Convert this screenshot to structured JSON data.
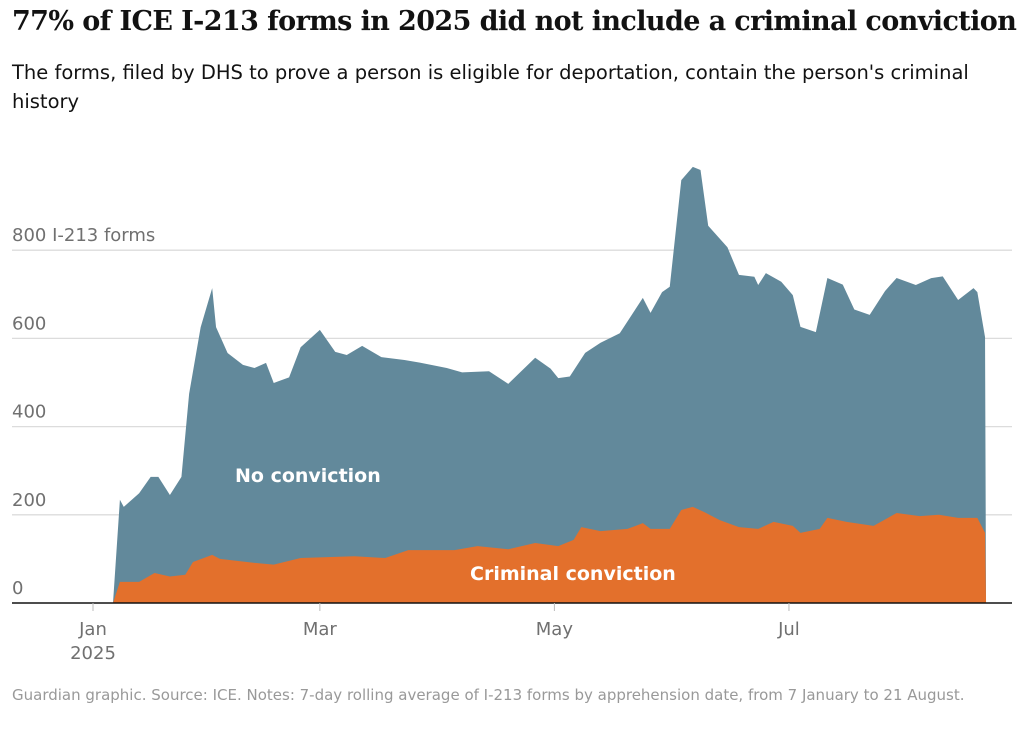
{
  "header": {
    "title": "77% of ICE I-213 forms in 2025 did not include a criminal conviction",
    "subtitle": "The forms, filed by DHS to prove a person is eligible for deportation, contain the person's criminal history"
  },
  "footer": "Guardian graphic. Source: ICE. Notes: 7-day rolling average of I-213 forms by apprehension date, from 7 January to 21 August.",
  "chart_data": {
    "type": "area",
    "stacked": true,
    "year": 2025,
    "ylim": [
      0,
      1000
    ],
    "yticks": [
      0,
      200,
      400,
      600,
      800
    ],
    "ytick_labels": [
      "0",
      "200",
      "400",
      "600",
      "800 I-213 forms"
    ],
    "xticks": [
      {
        "date": "01-01",
        "label": "Jan",
        "sublabel": "2025"
      },
      {
        "date": "03-01",
        "label": "Mar"
      },
      {
        "date": "05-01",
        "label": "May"
      },
      {
        "date": "07-01",
        "label": "Jul"
      }
    ],
    "grid": true,
    "colors": {
      "criminal": "#e3702c",
      "no_conviction": "#62899b"
    },
    "series": [
      {
        "name": "Criminal conviction",
        "dates": [
          "01-08",
          "01-13",
          "01-17",
          "01-21",
          "01-25",
          "01-27",
          "02-01",
          "02-03",
          "02-12",
          "02-17",
          "02-24",
          "03-10",
          "03-18",
          "03-24",
          "04-05",
          "04-11",
          "04-19",
          "04-26",
          "05-02",
          "05-06",
          "05-08",
          "05-13",
          "05-20",
          "05-24",
          "05-26",
          "05-31",
          "06-03",
          "06-06",
          "06-09",
          "06-13",
          "06-18",
          "06-23",
          "06-27",
          "07-02",
          "07-04",
          "07-09",
          "07-11",
          "07-16",
          "07-23",
          "07-29",
          "08-04",
          "08-09",
          "08-14",
          "08-19",
          "08-21"
        ],
        "values": [
          48,
          48,
          68,
          60,
          64,
          93,
          109,
          100,
          91,
          87,
          102,
          106,
          102,
          120,
          120,
          129,
          122,
          136,
          129,
          143,
          172,
          163,
          168,
          181,
          168,
          168,
          211,
          218,
          206,
          188,
          172,
          168,
          184,
          175,
          159,
          168,
          193,
          184,
          175,
          204,
          197,
          200,
          193,
          193,
          159
        ]
      },
      {
        "name": "No conviction",
        "dates": [
          "01-08",
          "01-09",
          "01-13",
          "01-16",
          "01-18",
          "01-21",
          "01-24",
          "01-26",
          "01-29",
          "02-01",
          "02-02",
          "02-05",
          "02-09",
          "02-12",
          "02-15",
          "02-17",
          "02-21",
          "02-24",
          "03-01",
          "03-05",
          "03-08",
          "03-12",
          "03-17",
          "03-23",
          "03-27",
          "04-03",
          "04-07",
          "04-14",
          "04-19",
          "04-26",
          "04-30",
          "05-02",
          "05-05",
          "05-09",
          "05-13",
          "05-18",
          "05-24",
          "05-26",
          "05-29",
          "05-31",
          "06-03",
          "06-06",
          "06-08",
          "06-10",
          "06-15",
          "06-18",
          "06-22",
          "06-23",
          "06-25",
          "06-29",
          "07-02",
          "07-04",
          "07-08",
          "07-11",
          "07-15",
          "07-18",
          "07-22",
          "07-26",
          "07-29",
          "08-03",
          "08-07",
          "08-10",
          "08-14",
          "08-18",
          "08-19",
          "08-21"
        ],
        "values": [
          186,
          170,
          201,
          223,
          220,
          185,
          223,
          396,
          526,
          605,
          521,
          469,
          446,
          442,
          456,
          412,
          416,
          478,
          516,
          465,
          457,
          478,
          455,
          434,
          425,
          413,
          400,
          399,
          375,
          420,
          400,
          381,
          374,
          397,
          427,
          445,
          511,
          490,
          537,
          549,
          748,
          771,
          772,
          654,
          625,
          572,
          571,
          553,
          572,
          548,
          523,
          467,
          448,
          544,
          536,
          484,
          477,
          518,
          533,
          523,
          538,
          542,
          494,
          521,
          512,
          444
        ]
      }
    ]
  }
}
